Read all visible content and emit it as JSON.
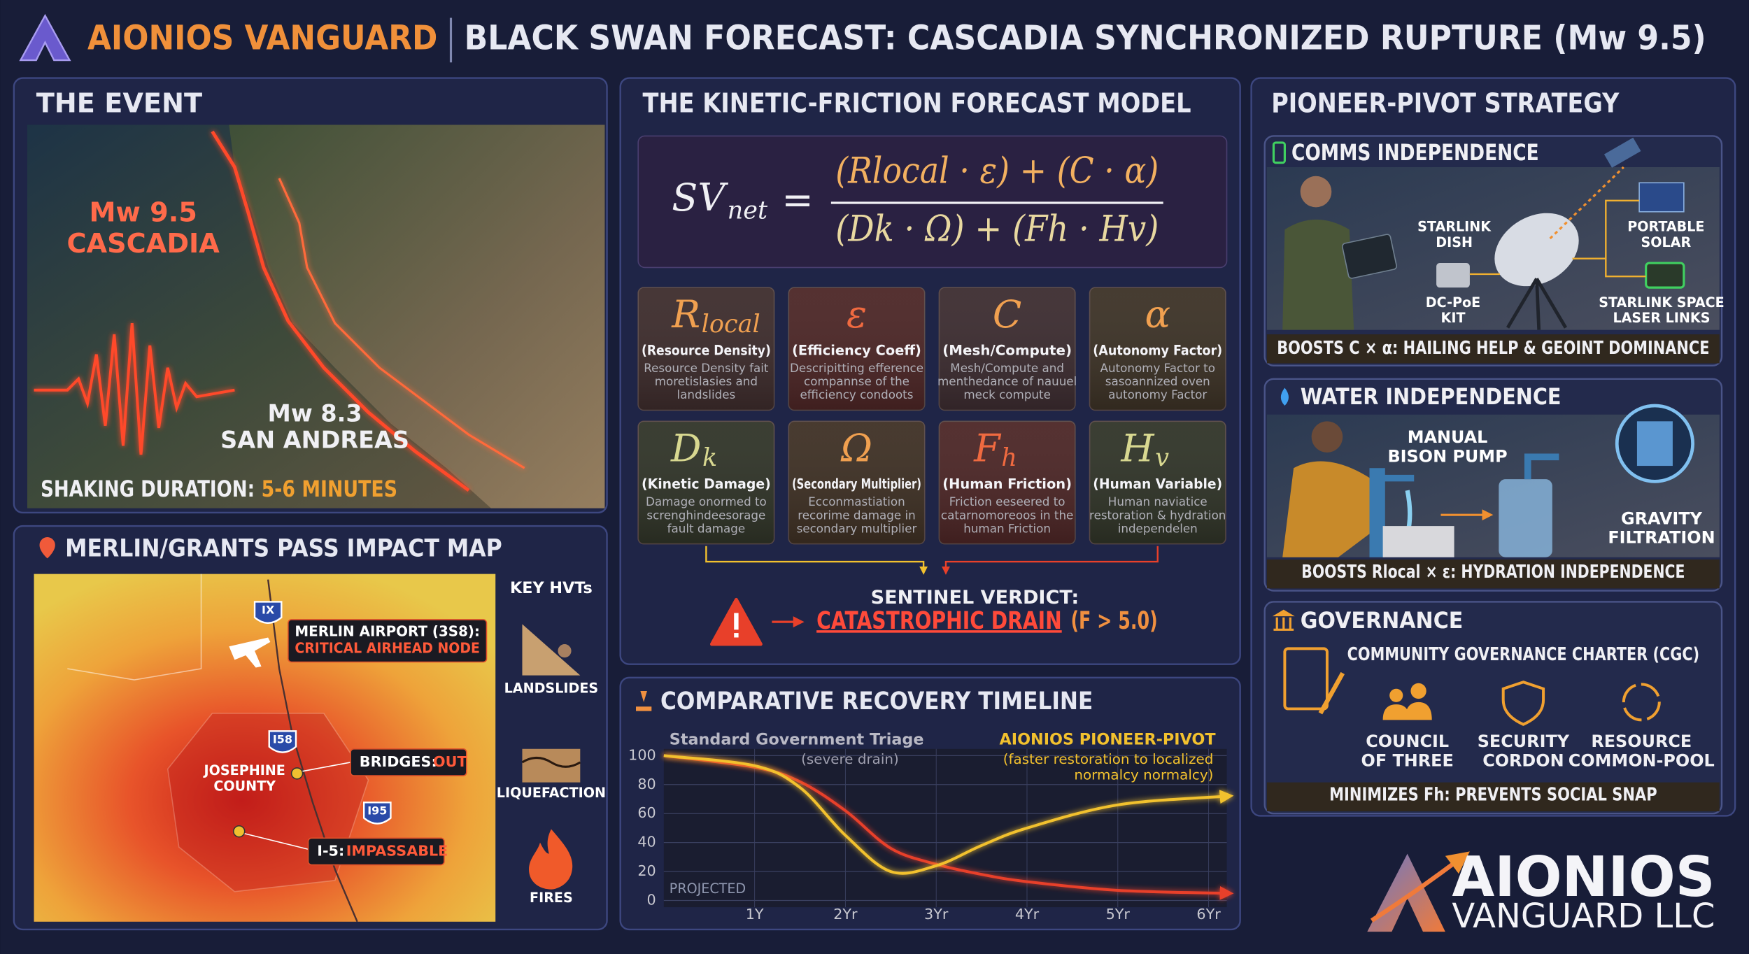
{
  "header": {
    "brand": "AIONIOS VANGUARD",
    "title": "BLACK SWAN FORECAST: CASCADIA SYNCHRONIZED RUPTURE (Mw 9.5)"
  },
  "event": {
    "title": "THE EVENT",
    "cascadia_magnitude": "Mw 9.5",
    "cascadia_name": "CASCADIA",
    "san_andreas_magnitude": "Mw 8.3",
    "san_andreas_name": "SAN ANDREAS",
    "duration_label": "SHAKING DURATION:",
    "duration_value": "5-6 MINUTES"
  },
  "impact_map": {
    "title": "MERLIN/GRANTS PASS IMPACT MAP",
    "airport_label": "MERLIN AIRPORT (3S8):",
    "airport_status": "CRITICAL AIRHEAD NODE",
    "bridges_label": "BRIDGES:",
    "bridges_status": "OUT",
    "i5_label": "I-5:",
    "i5_status": "IMPASSABLE",
    "county": [
      "JOSEPHINE",
      "COUNTY"
    ],
    "shields": [
      "IX",
      "I58",
      "I95"
    ],
    "key_title": "KEY HVTs",
    "key_items": [
      "LANDSLIDES",
      "LIQUEFACTION",
      "FIRES"
    ]
  },
  "model": {
    "title": "THE KINETIC-FRICTION FORECAST MODEL",
    "formula": {
      "lhs": "SV",
      "lhs_sub": "net",
      "equals": "=",
      "numerator": "(Rlocal · ε) + (C · α)",
      "denominator": "(Dk · Ω) + (Fh · Hv)"
    },
    "variables": [
      {
        "symbol": "R",
        "sub": "local",
        "name": "(Resource Density)",
        "desc": [
          "Resource Density fait",
          "moretislasies and",
          "landslides"
        ]
      },
      {
        "symbol": "ε",
        "name": "(Efficiency Coeff)",
        "desc": [
          "Descripitting efference",
          "compannse of the",
          "efficiency condoots"
        ]
      },
      {
        "symbol": "C",
        "name": "(Mesh/Compute)",
        "desc": [
          "Mesh/Compute and",
          "menthedance of nauuel",
          "meck compute"
        ]
      },
      {
        "symbol": "α",
        "name": "(Autonomy Factor)",
        "desc": [
          "Autonomy Factor to",
          "sasoannized oven",
          "autonomy Factor"
        ]
      },
      {
        "symbol": "D",
        "sub": "k",
        "name": "(Kinetic Damage)",
        "desc": [
          "Damage onormed to",
          "screnghindeesorage",
          "fault damage"
        ]
      },
      {
        "symbol": "Ω",
        "name": "(Secondary Multiplier)",
        "desc": [
          "Ecconmastiation",
          "recorime damage in",
          "secondary multiplier"
        ]
      },
      {
        "symbol": "F",
        "sub": "h",
        "name": "(Human Friction)",
        "desc": [
          "Friction eeseered to",
          "catarnomoreoos in the",
          "human Friction"
        ]
      },
      {
        "symbol": "H",
        "sub": "v",
        "name": "(Human Variable)",
        "desc": [
          "Human naviatice",
          "restoration & hydration",
          "independelen"
        ]
      }
    ],
    "verdict_label": "SENTINEL VERDICT:",
    "verdict": "CATASTROPHIC DRAIN",
    "verdict_condition": "(F > 5.0)"
  },
  "chart_data": {
    "type": "line",
    "title": "COMPARATIVE RECOVERY TIMELINE",
    "x": [
      0,
      1,
      1.5,
      2,
      2.5,
      3,
      3.5,
      4,
      5,
      6.2
    ],
    "series": [
      {
        "name": "Standard Government Triage",
        "note": [
          "(severe drain)"
        ],
        "color": "#e8402a",
        "values": [
          100,
          92,
          82,
          62,
          36,
          25,
          18,
          13,
          7,
          5
        ]
      },
      {
        "name": "AIONIOS PIONEER-PIVOT",
        "note": [
          "(faster restoration to localized",
          "normalcy normalcy)"
        ],
        "color": "#f2c12e",
        "values": [
          100,
          93,
          78,
          45,
          20,
          24,
          38,
          50,
          66,
          72
        ]
      }
    ],
    "xlim": [
      0,
      6.2
    ],
    "xticks": [
      {
        "value": 1,
        "label": "1Y"
      },
      {
        "value": 2,
        "label": "2Yr"
      },
      {
        "value": 3,
        "label": "3Yr"
      },
      {
        "value": 4,
        "label": "4Yr"
      },
      {
        "value": 5,
        "label": "5Yr"
      },
      {
        "value": 6,
        "label": "6Yr"
      }
    ],
    "ylim": [
      0,
      100
    ],
    "yticks": [
      0,
      20,
      40,
      60,
      80,
      100
    ],
    "grid": true,
    "annotation": "PROJECTED"
  },
  "strategy": {
    "title": "PIONEER-PIVOT STRATEGY",
    "comms": {
      "title": "COMMS INDEPENDENCE",
      "dish": [
        "STARLINK",
        "DISH"
      ],
      "solar": [
        "PORTABLE",
        "SOLAR"
      ],
      "kit": [
        "DC-PoE",
        "KIT"
      ],
      "laser": [
        "STARLINK SPACE",
        "LASER LINKS"
      ],
      "footer": "BOOSTS C × α: HAILING HELP & GEOINT DOMINANCE"
    },
    "water": {
      "title": "WATER INDEPENDENCE",
      "pump": [
        "MANUAL",
        "BISON PUMP"
      ],
      "filtration": [
        "GRAVITY",
        "FILTRATION"
      ],
      "footer": "BOOSTS Rlocal × ε: HYDRATION INDEPENDENCE"
    },
    "governance": {
      "title": "GOVERNANCE",
      "charter": "COMMUNITY GOVERNANCE CHARTER (CGC)",
      "items": [
        [
          "COUNCIL",
          "OF THREE"
        ],
        [
          "SECURITY",
          "CORDON"
        ],
        [
          "RESOURCE",
          "COMMON-POOL"
        ]
      ],
      "footer": "MINIMIZES Fh: PREVENTS SOCIAL SNAP"
    }
  },
  "logo": {
    "name": "AIONIOS",
    "suffix": "VANGUARD LLC"
  }
}
